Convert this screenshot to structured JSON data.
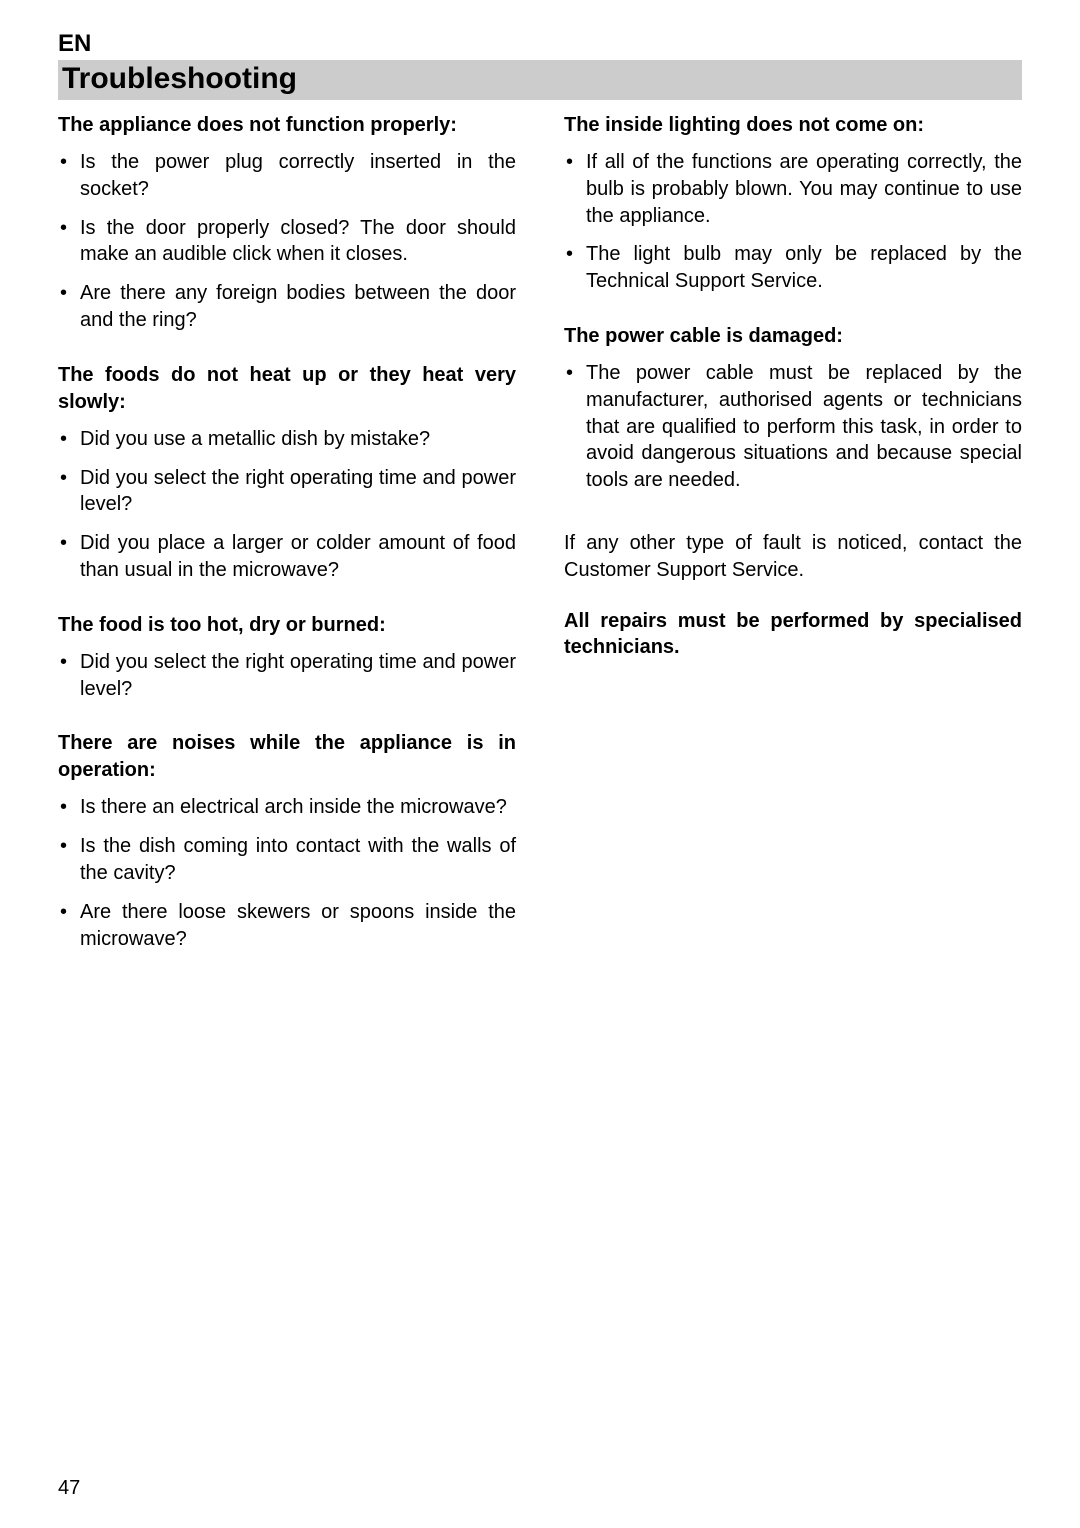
{
  "page": {
    "lang_code": "EN",
    "title": "Troubleshooting",
    "page_number": "47",
    "colors": {
      "background": "#ffffff",
      "text": "#000000",
      "title_bar_bg": "#cccccc"
    },
    "typography": {
      "font_family": "Arial",
      "body_size_pt": 15,
      "title_size_pt": 22,
      "heading_weight": "bold"
    }
  },
  "left": {
    "s1": {
      "head": "The appliance does not function properly:",
      "b1": "Is the power plug correctly inserted in the socket?",
      "b2": "Is the door properly closed? The door should make an audible click when it closes.",
      "b3": "Are there any foreign bodies between the door and the ring?"
    },
    "s2": {
      "head": "The foods do not heat up or they heat very slowly:",
      "b1": "Did you use a metallic dish by mistake?",
      "b2": "Did you select the right operating time and power level?",
      "b3": "Did you place a larger or colder amount of food than usual in the microwave?"
    },
    "s3": {
      "head": "The food is too hot, dry or burned:",
      "b1": "Did you select the right operating time and power level?"
    },
    "s4": {
      "head": "There are noises while the appliance is in operation:",
      "b1": "Is there an electrical arch inside the microwave?",
      "b2": "Is the dish coming into contact with the walls of the cavity?",
      "b3": "Are there loose skewers or spoons inside the microwave?"
    }
  },
  "right": {
    "s1": {
      "head": "The inside lighting does not come on:",
      "b1": "If all of the functions are operating correctly, the bulb is probably blown. You may continue to use the appliance.",
      "b2": "The light bulb may only be replaced by the Technical Support Service."
    },
    "s2": {
      "head": "The power cable is damaged:",
      "b1": "The power cable must be replaced by the manufacturer, authorised agents or technicians that are qualified to perform this task, in order to avoid dangerous situations and because special tools are needed."
    },
    "p1": "If any other type of fault is noticed, contact the Customer Support Service.",
    "p2": "All repairs must be performed by specialised technicians."
  }
}
